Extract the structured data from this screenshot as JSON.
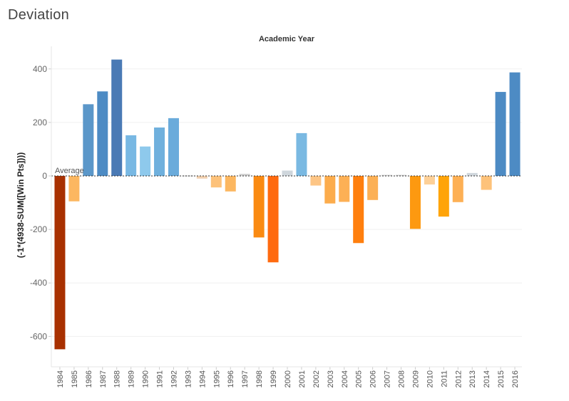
{
  "sheet": {
    "title": "Deviation"
  },
  "chart_data": {
    "type": "bar",
    "title": "",
    "column_header": "Academic Year",
    "xlabel": "",
    "ylabel": "(-1*(4938-SUM([Win Pts])))",
    "ylim": [
      -700,
      480
    ],
    "yticks": [
      400,
      200,
      0,
      -200,
      -400,
      -600
    ],
    "grid": true,
    "reference_line": {
      "label": "Average",
      "value": 0
    },
    "categories": [
      "1984",
      "1985",
      "1986",
      "1987",
      "1988",
      "1989",
      "1990",
      "1991",
      "1992",
      "1993",
      "1994",
      "1995",
      "1996",
      "1997",
      "1998",
      "1999",
      "2000",
      "2001",
      "2002",
      "2003",
      "2004",
      "2005",
      "2006",
      "2007",
      "2008",
      "2009",
      "2010",
      "2011",
      "2012",
      "2013",
      "2014",
      "2015",
      "2016"
    ],
    "values": [
      -648,
      -95,
      268,
      316,
      435,
      152,
      110,
      181,
      216,
      2,
      -10,
      -43,
      -58,
      8,
      -230,
      -323,
      20,
      160,
      -36,
      -103,
      -97,
      -251,
      -90,
      4,
      4,
      -198,
      -32,
      -152,
      -98,
      11,
      -52,
      314,
      387
    ],
    "colors": [
      "#a83000",
      "#fcb760",
      "#5b97c9",
      "#4d8bc4",
      "#4a7ab5",
      "#78b8e3",
      "#8ec9ec",
      "#6fb0dd",
      "#6aabdb",
      "#d6d6d6",
      "#f1cfae",
      "#fdc27a",
      "#fcb760",
      "#d1d1d1",
      "#fa8a12",
      "#ff6a0f",
      "#cfd6dc",
      "#7ab9e2",
      "#fdc585",
      "#fcac4c",
      "#fdb055",
      "#ff7f0e",
      "#fcb055",
      "#d0d0d0",
      "#d0d0d0",
      "#fd9910",
      "#fdd098",
      "#ffa409",
      "#fdb055",
      "#cfd6dc",
      "#fdc27a",
      "#4d8bc4",
      "#4d8bc4"
    ]
  }
}
